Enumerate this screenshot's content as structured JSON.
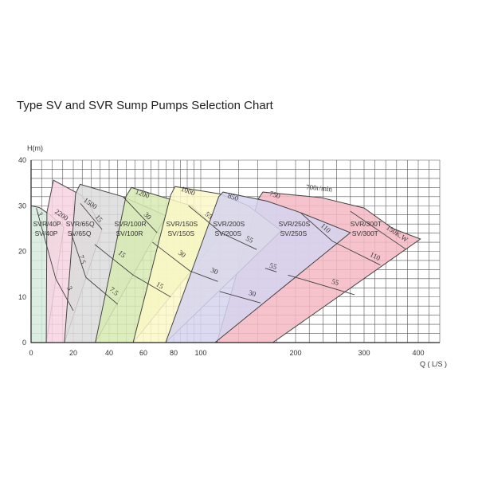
{
  "chart_data": {
    "type": "area",
    "title": "Type SV and SVR Sump Pumps Selection Chart",
    "ylabel": "H(m)",
    "xlabel": "Q ( L/S )",
    "x_scale": "nonlinear (expanded below 100)",
    "x_ticks": [
      0,
      20,
      40,
      60,
      80,
      100,
      200,
      300,
      400
    ],
    "y_ticks": [
      0,
      10,
      20,
      30,
      40
    ],
    "xlim": [
      0,
      440
    ],
    "ylim": [
      0,
      40
    ],
    "grid": true,
    "regions": [
      {
        "models": [
          "SVR/40P",
          "SV/40P"
        ],
        "label_at": [
          1,
          25.5
        ],
        "color": "#d6ebdc",
        "points": [
          [
            0,
            30
          ],
          [
            4,
            29.6
          ],
          [
            9,
            28
          ],
          [
            15.5,
            25.3
          ],
          [
            7.2,
            0
          ],
          [
            0,
            0
          ]
        ]
      },
      {
        "models": [
          "SVR/65Q",
          "SV/65Q"
        ],
        "label_at": [
          16.5,
          25.5
        ],
        "color": "#f6d3e1",
        "points": [
          [
            7.5,
            28.5
          ],
          [
            10.6,
            35.6
          ],
          [
            24.5,
            32.3
          ],
          [
            30,
            29.5
          ],
          [
            36,
            24.8
          ],
          [
            15.8,
            0
          ],
          [
            7.2,
            0
          ]
        ]
      },
      {
        "models": [
          "SVR/100R",
          "SV/100R"
        ],
        "label_at": [
          43,
          25.5
        ],
        "color": "#dcdcdc",
        "points": [
          [
            21.3,
            32.7
          ],
          [
            23.8,
            34.7
          ],
          [
            48,
            32
          ],
          [
            75,
            27.8
          ],
          [
            32.3,
            0
          ],
          [
            15.8,
            0
          ]
        ]
      },
      {
        "models": [
          "SVR/150S",
          "SV/150S"
        ],
        "label_at": [
          75,
          25.5
        ],
        "color": "#d7eab2",
        "points": [
          [
            49.8,
            32
          ],
          [
            53,
            34
          ],
          [
            93,
            30
          ],
          [
            122,
            24
          ],
          [
            54,
            0
          ],
          [
            32.3,
            0
          ]
        ]
      },
      {
        "models": [
          "SVR/300T",
          "SV/300T"
        ],
        "label_at": [
          280,
          25.5
        ],
        "color": "#f4b8c4",
        "points": [
          [
            161,
            31.6
          ],
          [
            165.5,
            33
          ],
          [
            237,
            31.8
          ],
          [
            300,
            29.5
          ],
          [
            353,
            25
          ],
          [
            404,
            22.7
          ],
          [
            176,
            0
          ],
          [
            117,
            0
          ]
        ]
      },
      {
        "models": [
          "SVR/200S",
          "SV/200S"
        ],
        "label_at": [
          113,
          25.5
        ],
        "color": "#fbf8c8",
        "points": [
          [
            78,
            32.3
          ],
          [
            81,
            34.2
          ],
          [
            120,
            32.6
          ],
          [
            150,
            30
          ],
          [
            185,
            24.5
          ],
          [
            74.7,
            0
          ],
          [
            54,
            0
          ]
        ]
      },
      {
        "models": [
          "SVR/250S",
          "SV/250S"
        ],
        "label_at": [
          182,
          25.5
        ],
        "color": "#d5d3ef",
        "points": [
          [
            119,
            32
          ],
          [
            123.5,
            33
          ],
          [
            170,
            31
          ],
          [
            207,
            28.5
          ],
          [
            280,
            24.1
          ],
          [
            115,
            0
          ],
          [
            74.7,
            0
          ]
        ]
      }
    ],
    "speed_labels": [
      {
        "text": "2200",
        "at": [
          11,
          28.5
        ],
        "rot": 35
      },
      {
        "text": "1500",
        "at": [
          25.5,
          31
        ],
        "rot": 35
      },
      {
        "text": "1200",
        "at": [
          55,
          32.7
        ],
        "rot": 20
      },
      {
        "text": "1000",
        "at": [
          85,
          33.3
        ],
        "rot": 20
      },
      {
        "text": "850",
        "at": [
          128,
          31.8
        ],
        "rot": 18
      },
      {
        "text": "750",
        "at": [
          172,
          32.3
        ],
        "rot": 18
      },
      {
        "text": "700r/min",
        "at": [
          215,
          33.6
        ],
        "rot": 5
      }
    ],
    "power_lines": [
      {
        "label": "3",
        "from": [
          2.5,
          29.5
        ],
        "to": [
          11.7,
          14
        ],
        "label_at": [
          3,
          28.5
        ]
      },
      {
        "label": "3",
        "from": [
          11.7,
          14
        ],
        "to": [
          20,
          7
        ],
        "label_at": [
          17,
          12
        ]
      },
      {
        "label": "7.5",
        "from": [
          19,
          24
        ],
        "to": [
          27,
          14.3
        ],
        "label_at": [
          23,
          19
        ]
      },
      {
        "label": "7.5",
        "from": [
          27,
          14.3
        ],
        "to": [
          45,
          8.4
        ],
        "label_at": [
          40,
          11.5
        ]
      },
      {
        "label": "15",
        "from": [
          24,
          30.5
        ],
        "to": [
          36,
          24.8
        ],
        "label_at": [
          32,
          27.5
        ]
      },
      {
        "label": "15",
        "from": [
          32,
          21.5
        ],
        "to": [
          54,
          14.8
        ],
        "label_at": [
          45,
          19.5
        ]
      },
      {
        "label": "15",
        "from": [
          54,
          14.8
        ],
        "to": [
          78,
          10
        ],
        "label_at": [
          68,
          12.5
        ]
      },
      {
        "label": "30",
        "from": [
          48,
          32
        ],
        "to": [
          69,
          24.1
        ],
        "label_at": [
          60,
          28
        ]
      },
      {
        "label": "30",
        "from": [
          66,
          22
        ],
        "to": [
          92,
          15.7
        ],
        "label_at": [
          83,
          19.5
        ]
      },
      {
        "label": "30",
        "from": [
          92,
          15.7
        ],
        "to": [
          118,
          13.4
        ],
        "label_at": [
          110,
          15.5
        ]
      },
      {
        "label": "30",
        "from": [
          120,
          11.2
        ],
        "to": [
          163,
          8.7
        ],
        "label_at": [
          150,
          10.5
        ]
      },
      {
        "label": "55",
        "from": [
          91,
          30
        ],
        "to": [
          122,
          24
        ],
        "label_at": [
          104,
          28
        ]
      },
      {
        "label": "55",
        "from": [
          122,
          24
        ],
        "to": [
          159,
          20.4
        ],
        "label_at": [
          147,
          22.5
        ]
      },
      {
        "label": "55",
        "from": [
          168,
          16.3
        ],
        "to": [
          180,
          15.5
        ],
        "label_at": [
          172,
          16.5
        ]
      },
      {
        "label": "55",
        "from": [
          192,
          14.8
        ],
        "to": [
          286,
          10.5
        ],
        "label_at": [
          252,
          13
        ]
      },
      {
        "label": "110",
        "from": [
          207,
          28.5
        ],
        "to": [
          254,
          22.2
        ],
        "label_at": [
          236,
          25.5
        ]
      },
      {
        "label": "110",
        "from": [
          254,
          22.2
        ],
        "to": [
          330,
          17
        ],
        "label_at": [
          310,
          19
        ]
      },
      {
        "label": "150K.W",
        "from": [
          280,
          28.8
        ],
        "to": [
          378,
          20.4
        ],
        "label_at": [
          340,
          25
        ]
      }
    ]
  }
}
